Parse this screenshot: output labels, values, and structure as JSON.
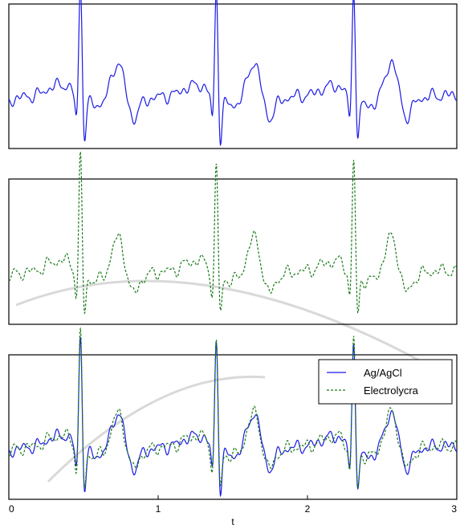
{
  "chart_data": {
    "type": "line",
    "x_ticks": [
      {
        "value": 0,
        "label": "0"
      },
      {
        "value": 1,
        "label": "1"
      },
      {
        "value": 2,
        "label": "2"
      },
      {
        "value": 3,
        "label": "3"
      }
    ],
    "xlabel": "t",
    "xlim": [
      0,
      3
    ],
    "ylim": [
      0,
      1
    ],
    "grid": false,
    "legend_placement": "top-right",
    "beats_t": [
      0.48,
      1.39,
      2.31
    ],
    "panels": [
      {
        "series": [
          "ag"
        ]
      },
      {
        "series": [
          "lycra"
        ]
      },
      {
        "series": [
          "ag",
          "lycra"
        ],
        "legend": true
      }
    ],
    "series": {
      "ag": {
        "name": "Ag/AgCl",
        "color": "#1a1ae6",
        "style": "solid",
        "seed": 7,
        "x_start": 0.0
      },
      "lycra": {
        "name": "Electrolycra",
        "color": "#1a7a1a",
        "style": "dashed",
        "seed": 19,
        "x_start": 0.0
      }
    }
  }
}
